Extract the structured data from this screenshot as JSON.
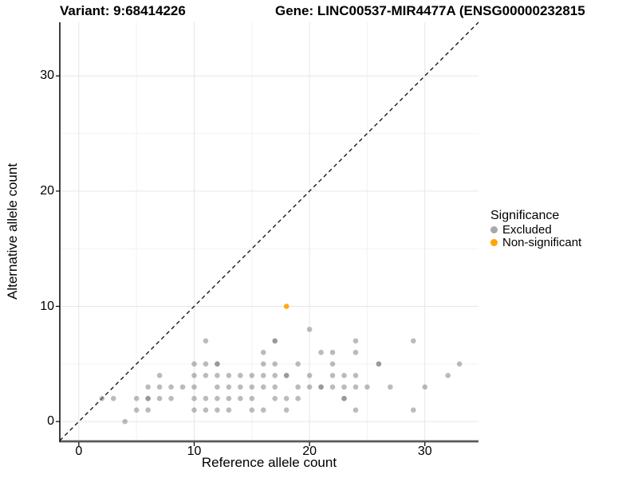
{
  "title": {
    "left": "Variant: 9:68414226",
    "right": "Gene: LINC00537-MIR4477A (ENSG00000232815"
  },
  "chart_data": {
    "type": "scatter",
    "title_left": "Variant: 9:68414226",
    "title_right": "Gene: LINC00537-MIR4477A (ENSG00000232815",
    "xlabel": "Reference allele count",
    "ylabel": "Alternative allele count",
    "x_axis": {
      "ticks": [
        0,
        10,
        20,
        30
      ],
      "minor_ticks": [
        5,
        15,
        25
      ],
      "range": [
        -1.65,
        34.65
      ]
    },
    "y_axis": {
      "ticks": [
        0,
        10,
        20,
        30
      ],
      "minor_ticks": [
        5,
        15,
        25
      ],
      "range": [
        -1.65,
        34.65
      ]
    },
    "grid": {
      "major": true,
      "minor": true,
      "major_color": "#e6e6e6",
      "minor_color": "#f2f2f2"
    },
    "identity_line": {
      "style": "dashed",
      "slope": 1,
      "intercept": 0,
      "color": "#1a1a1a"
    },
    "legend": {
      "title": "Significance",
      "position": "right",
      "items": [
        {
          "label": "Excluded",
          "color": "#a8a8a8"
        },
        {
          "label": "Non-significant",
          "color": "#FFA500"
        }
      ]
    },
    "series": [
      {
        "name": "Excluded",
        "color": "#777777",
        "opacity": 0.5,
        "points": [
          [
            2,
            2
          ],
          [
            3,
            2
          ],
          [
            4,
            0
          ],
          [
            5,
            1
          ],
          [
            5,
            2
          ],
          [
            6,
            1
          ],
          [
            6,
            2
          ],
          [
            6,
            3
          ],
          [
            7,
            2
          ],
          [
            7,
            3
          ],
          [
            7,
            4
          ],
          [
            8,
            2
          ],
          [
            8,
            3
          ],
          [
            9,
            3
          ],
          [
            10,
            1
          ],
          [
            10,
            2
          ],
          [
            10,
            3
          ],
          [
            10,
            4
          ],
          [
            10,
            5
          ],
          [
            11,
            1
          ],
          [
            11,
            2
          ],
          [
            11,
            4
          ],
          [
            11,
            5
          ],
          [
            11,
            7
          ],
          [
            12,
            1
          ],
          [
            12,
            2
          ],
          [
            12,
            3
          ],
          [
            12,
            4
          ],
          [
            12,
            5
          ],
          [
            13,
            1
          ],
          [
            13,
            2
          ],
          [
            13,
            3
          ],
          [
            13,
            4
          ],
          [
            14,
            2
          ],
          [
            14,
            3
          ],
          [
            14,
            4
          ],
          [
            15,
            1
          ],
          [
            15,
            2
          ],
          [
            15,
            3
          ],
          [
            15,
            4
          ],
          [
            16,
            1
          ],
          [
            16,
            3
          ],
          [
            16,
            4
          ],
          [
            16,
            5
          ],
          [
            16,
            6
          ],
          [
            17,
            2
          ],
          [
            17,
            3
          ],
          [
            17,
            4
          ],
          [
            17,
            5
          ],
          [
            17,
            7
          ],
          [
            18,
            1
          ],
          [
            18,
            2
          ],
          [
            18,
            4
          ],
          [
            19,
            2
          ],
          [
            19,
            3
          ],
          [
            19,
            5
          ],
          [
            20,
            3
          ],
          [
            20,
            4
          ],
          [
            20,
            8
          ],
          [
            21,
            3
          ],
          [
            21,
            6
          ],
          [
            22,
            3
          ],
          [
            22,
            4
          ],
          [
            22,
            5
          ],
          [
            22,
            6
          ],
          [
            23,
            2
          ],
          [
            23,
            3
          ],
          [
            23,
            4
          ],
          [
            24,
            1
          ],
          [
            24,
            3
          ],
          [
            24,
            4
          ],
          [
            24,
            6
          ],
          [
            24,
            7
          ],
          [
            25,
            3
          ],
          [
            26,
            5
          ],
          [
            27,
            3
          ],
          [
            29,
            1
          ],
          [
            29,
            7
          ],
          [
            30,
            3
          ],
          [
            32,
            4
          ],
          [
            33,
            5
          ]
        ]
      },
      {
        "name": "Excluded-overplotted",
        "color": "#777777",
        "opacity": 0.5,
        "points": [
          [
            6,
            2
          ],
          [
            12,
            5
          ],
          [
            17,
            7
          ],
          [
            18,
            4
          ],
          [
            21,
            3
          ],
          [
            23,
            2
          ],
          [
            26,
            5
          ]
        ]
      },
      {
        "name": "Non-significant",
        "color": "#FFA500",
        "opacity": 0.95,
        "points": [
          [
            18,
            10
          ]
        ]
      }
    ]
  }
}
